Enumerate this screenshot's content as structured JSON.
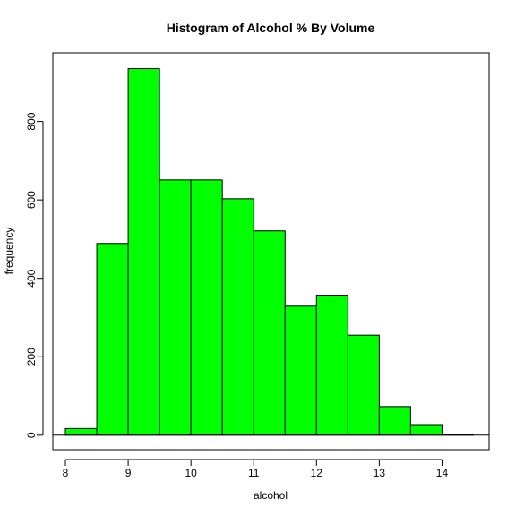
{
  "chart_data": {
    "type": "bar",
    "title": "Histogram of Alcohol % By Volume",
    "xlabel": "alcohol",
    "ylabel": "frequency",
    "bins": [
      {
        "start": 8.0,
        "end": 8.5,
        "count": 17
      },
      {
        "start": 8.5,
        "end": 9.0,
        "count": 489
      },
      {
        "start": 9.0,
        "end": 9.5,
        "count": 935
      },
      {
        "start": 9.5,
        "end": 10.0,
        "count": 651
      },
      {
        "start": 10.0,
        "end": 10.5,
        "count": 651
      },
      {
        "start": 10.5,
        "end": 11.0,
        "count": 603
      },
      {
        "start": 11.0,
        "end": 11.5,
        "count": 521
      },
      {
        "start": 11.5,
        "end": 12.0,
        "count": 329
      },
      {
        "start": 12.0,
        "end": 12.5,
        "count": 357
      },
      {
        "start": 12.5,
        "end": 13.0,
        "count": 255
      },
      {
        "start": 13.0,
        "end": 13.5,
        "count": 73
      },
      {
        "start": 13.5,
        "end": 14.0,
        "count": 27
      },
      {
        "start": 14.0,
        "end": 14.5,
        "count": 2
      }
    ],
    "x_ticks": [
      "8",
      "9",
      "10",
      "11",
      "12",
      "13",
      "14"
    ],
    "y_ticks": [
      "0",
      "200",
      "400",
      "600",
      "800"
    ],
    "xlim": [
      7.8,
      14.75
    ],
    "ylim": [
      -37,
      975
    ],
    "bar_color": "#00ff00",
    "grid": false,
    "legend": "none"
  }
}
